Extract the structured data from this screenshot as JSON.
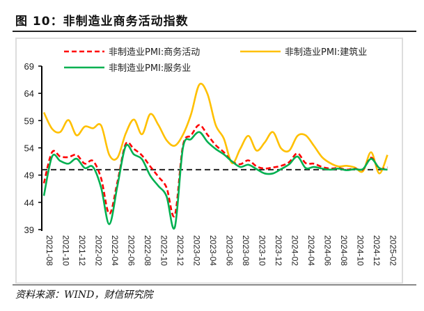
{
  "title": "图 10：非制造业商务活动指数",
  "source": "资料来源：WIND，财信研究院",
  "chart_data": {
    "type": "line",
    "title": "",
    "xlabel": "",
    "ylabel": "",
    "ylim": [
      39,
      69
    ],
    "yticks": [
      39,
      44,
      49,
      54,
      59,
      64,
      69
    ],
    "reference_line": {
      "y": 50,
      "style": "dashed",
      "color": "#222222"
    },
    "grid": false,
    "legend": "top",
    "x": [
      "2021-08",
      "2021-09",
      "2021-10",
      "2021-11",
      "2021-12",
      "2022-01",
      "2022-02",
      "2022-03",
      "2022-04",
      "2022-05",
      "2022-06",
      "2022-07",
      "2022-08",
      "2022-09",
      "2022-10",
      "2022-11",
      "2022-12",
      "2023-01",
      "2023-02",
      "2023-03",
      "2023-04",
      "2023-05",
      "2023-06",
      "2023-07",
      "2023-08",
      "2023-09",
      "2023-10",
      "2023-11",
      "2023-12",
      "2024-01",
      "2024-02",
      "2024-03",
      "2024-04",
      "2024-05",
      "2024-06",
      "2024-07",
      "2024-08",
      "2024-09",
      "2024-10",
      "2024-11",
      "2024-12",
      "2025-01",
      "2025-02"
    ],
    "xticklabels": [
      "2021-08",
      "2021-10",
      "2021-12",
      "2022-02",
      "2022-04",
      "2022-06",
      "2022-08",
      "2022-10",
      "2022-12",
      "2023-02",
      "2023-04",
      "2023-06",
      "2023-08",
      "2023-10",
      "2023-12",
      "2024-02",
      "2024-04",
      "2024-06",
      "2024-08",
      "2024-10",
      "2024-12",
      "2025-02"
    ],
    "series": [
      {
        "name": "非制造业PMI:商务活动",
        "color": "#ff0000",
        "style": "dashed",
        "values": [
          47.5,
          53.2,
          52.4,
          52.3,
          52.7,
          51.1,
          51.6,
          48.4,
          41.9,
          47.8,
          54.7,
          53.8,
          52.6,
          50.6,
          48.7,
          46.7,
          41.6,
          54.4,
          56.3,
          58.2,
          56.4,
          54.5,
          53.2,
          51.5,
          51.0,
          51.7,
          50.6,
          50.2,
          50.4,
          50.7,
          51.4,
          53.0,
          51.2,
          51.1,
          50.5,
          50.2,
          50.3,
          50.0,
          50.2,
          50.0,
          52.2,
          50.2,
          50.4
        ]
      },
      {
        "name": "非制造业PMI:建筑业",
        "color": "#ffc000",
        "style": "solid",
        "values": [
          60.5,
          57.5,
          56.9,
          59.1,
          56.3,
          57.9,
          57.6,
          58.1,
          52.7,
          52.2,
          56.6,
          59.2,
          56.5,
          60.2,
          58.2,
          55.4,
          54.4,
          56.4,
          60.2,
          65.6,
          63.9,
          58.2,
          55.7,
          51.2,
          53.8,
          56.2,
          53.5,
          55.0,
          56.9,
          53.9,
          53.5,
          56.2,
          56.3,
          54.4,
          52.3,
          51.2,
          50.6,
          50.7,
          50.4,
          49.7,
          53.2,
          49.3,
          52.7
        ]
      },
      {
        "name": "非制造业PMI:服务业",
        "color": "#00b050",
        "style": "solid",
        "values": [
          45.2,
          52.4,
          51.6,
          51.1,
          52.0,
          50.3,
          50.5,
          46.7,
          40.0,
          47.1,
          54.3,
          52.8,
          51.9,
          48.9,
          47.0,
          45.1,
          39.4,
          54.0,
          55.6,
          56.9,
          55.1,
          53.8,
          52.8,
          51.5,
          50.5,
          50.9,
          50.1,
          49.3,
          49.3,
          50.1,
          51.0,
          52.4,
          50.3,
          50.5,
          50.2,
          50.0,
          50.2,
          49.9,
          50.1,
          50.1,
          52.0,
          50.3,
          50.0
        ]
      }
    ]
  }
}
